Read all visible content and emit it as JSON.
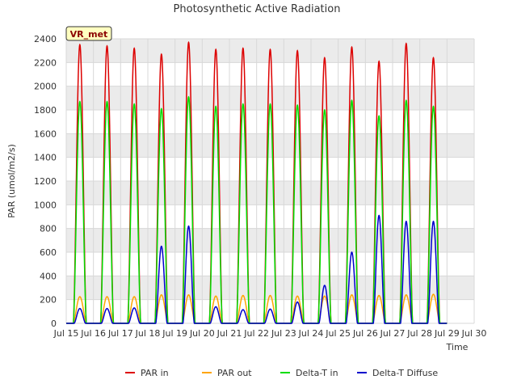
{
  "chart_data": {
    "type": "line",
    "title": "Photosynthetic Active Radiation",
    "xlabel": "Time",
    "ylabel": "PAR (umol/m2/s)",
    "site_label": "VR_met",
    "xlim": [
      15,
      30
    ],
    "ylim": [
      0,
      2400
    ],
    "x_ticks": [
      15,
      16,
      17,
      18,
      19,
      20,
      21,
      22,
      23,
      24,
      25,
      26,
      27,
      28,
      29,
      30
    ],
    "x_tick_labels": [
      "Jul 15",
      "Jul 16",
      "Jul 17",
      "Jul 18",
      "Jul 19",
      "Jul 20",
      "Jul 21",
      "Jul 22",
      "Jul 23",
      "Jul 24",
      "Jul 25",
      "Jul 26",
      "Jul 27",
      "Jul 28",
      "Jul 29",
      "Jul 30"
    ],
    "y_ticks": [
      0,
      200,
      400,
      600,
      800,
      1000,
      1200,
      1400,
      1600,
      1800,
      2000,
      2200,
      2400
    ],
    "y_tick_labels": [
      "0",
      "200",
      "400",
      "600",
      "800",
      "1000",
      "1200",
      "1400",
      "1600",
      "1800",
      "2000",
      "2200",
      "2400"
    ],
    "grid": true,
    "legend_position": "bottom",
    "day_centers": [
      15.5,
      16.5,
      17.5,
      18.5,
      19.5,
      20.5,
      21.5,
      22.5,
      23.5,
      24.5,
      25.5,
      26.5,
      27.5,
      28.5
    ],
    "series": [
      {
        "name": "PAR in",
        "color": "#dd0000",
        "daily_peaks": [
          2350,
          2340,
          2320,
          2270,
          2370,
          2310,
          2320,
          2310,
          2300,
          2240,
          2330,
          2210,
          2360,
          2240
        ]
      },
      {
        "name": "PAR out",
        "color": "#ffa500",
        "daily_peaks": [
          225,
          225,
          225,
          240,
          240,
          230,
          235,
          235,
          230,
          230,
          240,
          235,
          240,
          245
        ]
      },
      {
        "name": "Delta-T in",
        "color": "#00dd00",
        "daily_peaks": [
          1870,
          1870,
          1850,
          1810,
          1910,
          1830,
          1850,
          1850,
          1840,
          1800,
          1880,
          1750,
          1880,
          1830
        ]
      },
      {
        "name": "Delta-T Diffuse",
        "color": "#0000cc",
        "daily_peaks": [
          125,
          125,
          130,
          650,
          820,
          140,
          115,
          120,
          180,
          320,
          600,
          910,
          860,
          860
        ]
      }
    ]
  }
}
